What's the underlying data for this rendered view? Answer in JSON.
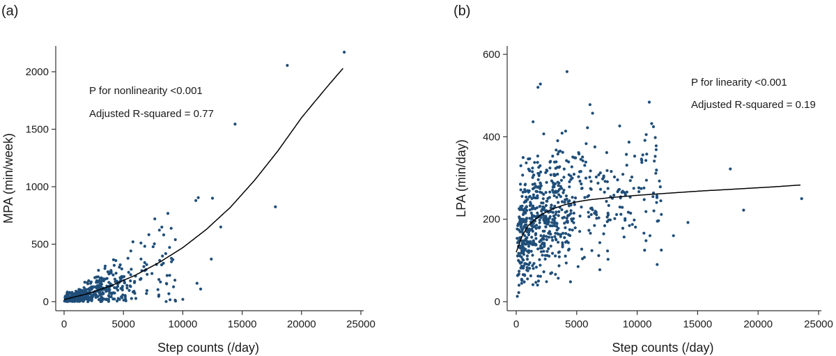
{
  "chart_data": [
    {
      "panel_label": "(a)",
      "type": "scatter",
      "xlabel": "Step counts (/day)",
      "ylabel": "MPA (min/week)",
      "xlim": [
        0,
        25000
      ],
      "ylim": [
        0,
        2200
      ],
      "xticks": [
        0,
        5000,
        10000,
        15000,
        20000,
        25000
      ],
      "yticks": [
        0,
        500,
        1000,
        1500,
        2000
      ],
      "annotations": [
        "P for nonlinearity <0.001",
        "Adjusted R-squared = 0.77"
      ],
      "point_color": "#1f4e79",
      "fit_curve": [
        [
          0,
          18
        ],
        [
          2000,
          70
        ],
        [
          4000,
          140
        ],
        [
          6000,
          230
        ],
        [
          8000,
          340
        ],
        [
          10000,
          470
        ],
        [
          12000,
          630
        ],
        [
          14000,
          820
        ],
        [
          16000,
          1050
        ],
        [
          18000,
          1310
        ],
        [
          20000,
          1600
        ],
        [
          22000,
          1850
        ],
        [
          23500,
          2030
        ]
      ],
      "outliers": [
        [
          23600,
          2170
        ],
        [
          18800,
          2055
        ],
        [
          14400,
          1545
        ],
        [
          17800,
          825
        ],
        [
          11300,
          905
        ],
        [
          11100,
          880
        ],
        [
          10000,
          20
        ],
        [
          11200,
          160
        ],
        [
          11500,
          110
        ],
        [
          12500,
          900
        ],
        [
          12400,
          370
        ],
        [
          13200,
          650
        ]
      ],
      "cluster_count": 420,
      "cluster_seed": 7
    },
    {
      "panel_label": "(b)",
      "type": "scatter",
      "xlabel": "Step counts (/day)",
      "ylabel": "LPA (min/day)",
      "xlim": [
        0,
        25000
      ],
      "ylim": [
        0,
        600
      ],
      "xticks": [
        0,
        5000,
        10000,
        15000,
        20000,
        25000
      ],
      "yticks": [
        0,
        200,
        400,
        600
      ],
      "annotations": [
        "P for linearity <0.001",
        "Adjusted R-squared = 0.19"
      ],
      "point_color": "#1f4e79",
      "fit_curve": [
        [
          0,
          120
        ],
        [
          500,
          160
        ],
        [
          1000,
          185
        ],
        [
          2000,
          210
        ],
        [
          3000,
          225
        ],
        [
          4000,
          235
        ],
        [
          5000,
          242
        ],
        [
          6000,
          247
        ],
        [
          8000,
          253
        ],
        [
          10000,
          258
        ],
        [
          12000,
          262
        ],
        [
          15000,
          268
        ],
        [
          18000,
          273
        ],
        [
          21000,
          278
        ],
        [
          23500,
          283
        ]
      ],
      "outliers": [
        [
          23600,
          250
        ],
        [
          18800,
          222
        ],
        [
          17700,
          322
        ],
        [
          11000,
          484
        ],
        [
          11200,
          432
        ],
        [
          4200,
          558
        ],
        [
          2000,
          528
        ],
        [
          1800,
          520
        ],
        [
          6100,
          478
        ],
        [
          12000,
          125
        ],
        [
          13000,
          160
        ],
        [
          14200,
          192
        ]
      ],
      "cluster_count": 720,
      "cluster_seed": 11
    }
  ]
}
